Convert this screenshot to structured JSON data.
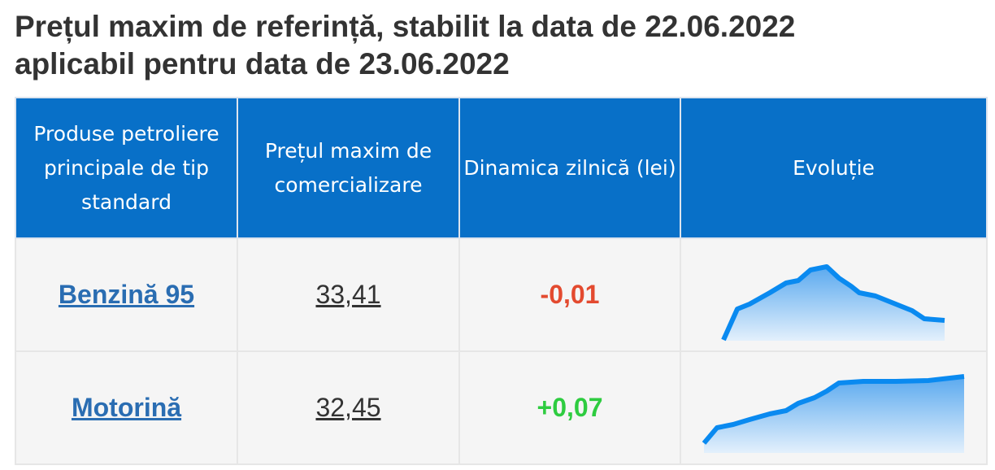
{
  "header": {
    "title_line1": "Prețul maxim de referință, stabilit la data de 22.06.2022",
    "title_line2": "aplicabil pentru data de 23.06.2022"
  },
  "table": {
    "columns": [
      "Produse petroliere principale de tip standard",
      "Prețul maxim de comercializare",
      "Dinamica zilnică (lei)",
      "Evoluție"
    ],
    "rows": [
      [
        "Benzină 95",
        "33,41",
        "-0,01"
      ],
      [
        "Motorină",
        "32,45",
        "+0,07"
      ]
    ]
  }
}
